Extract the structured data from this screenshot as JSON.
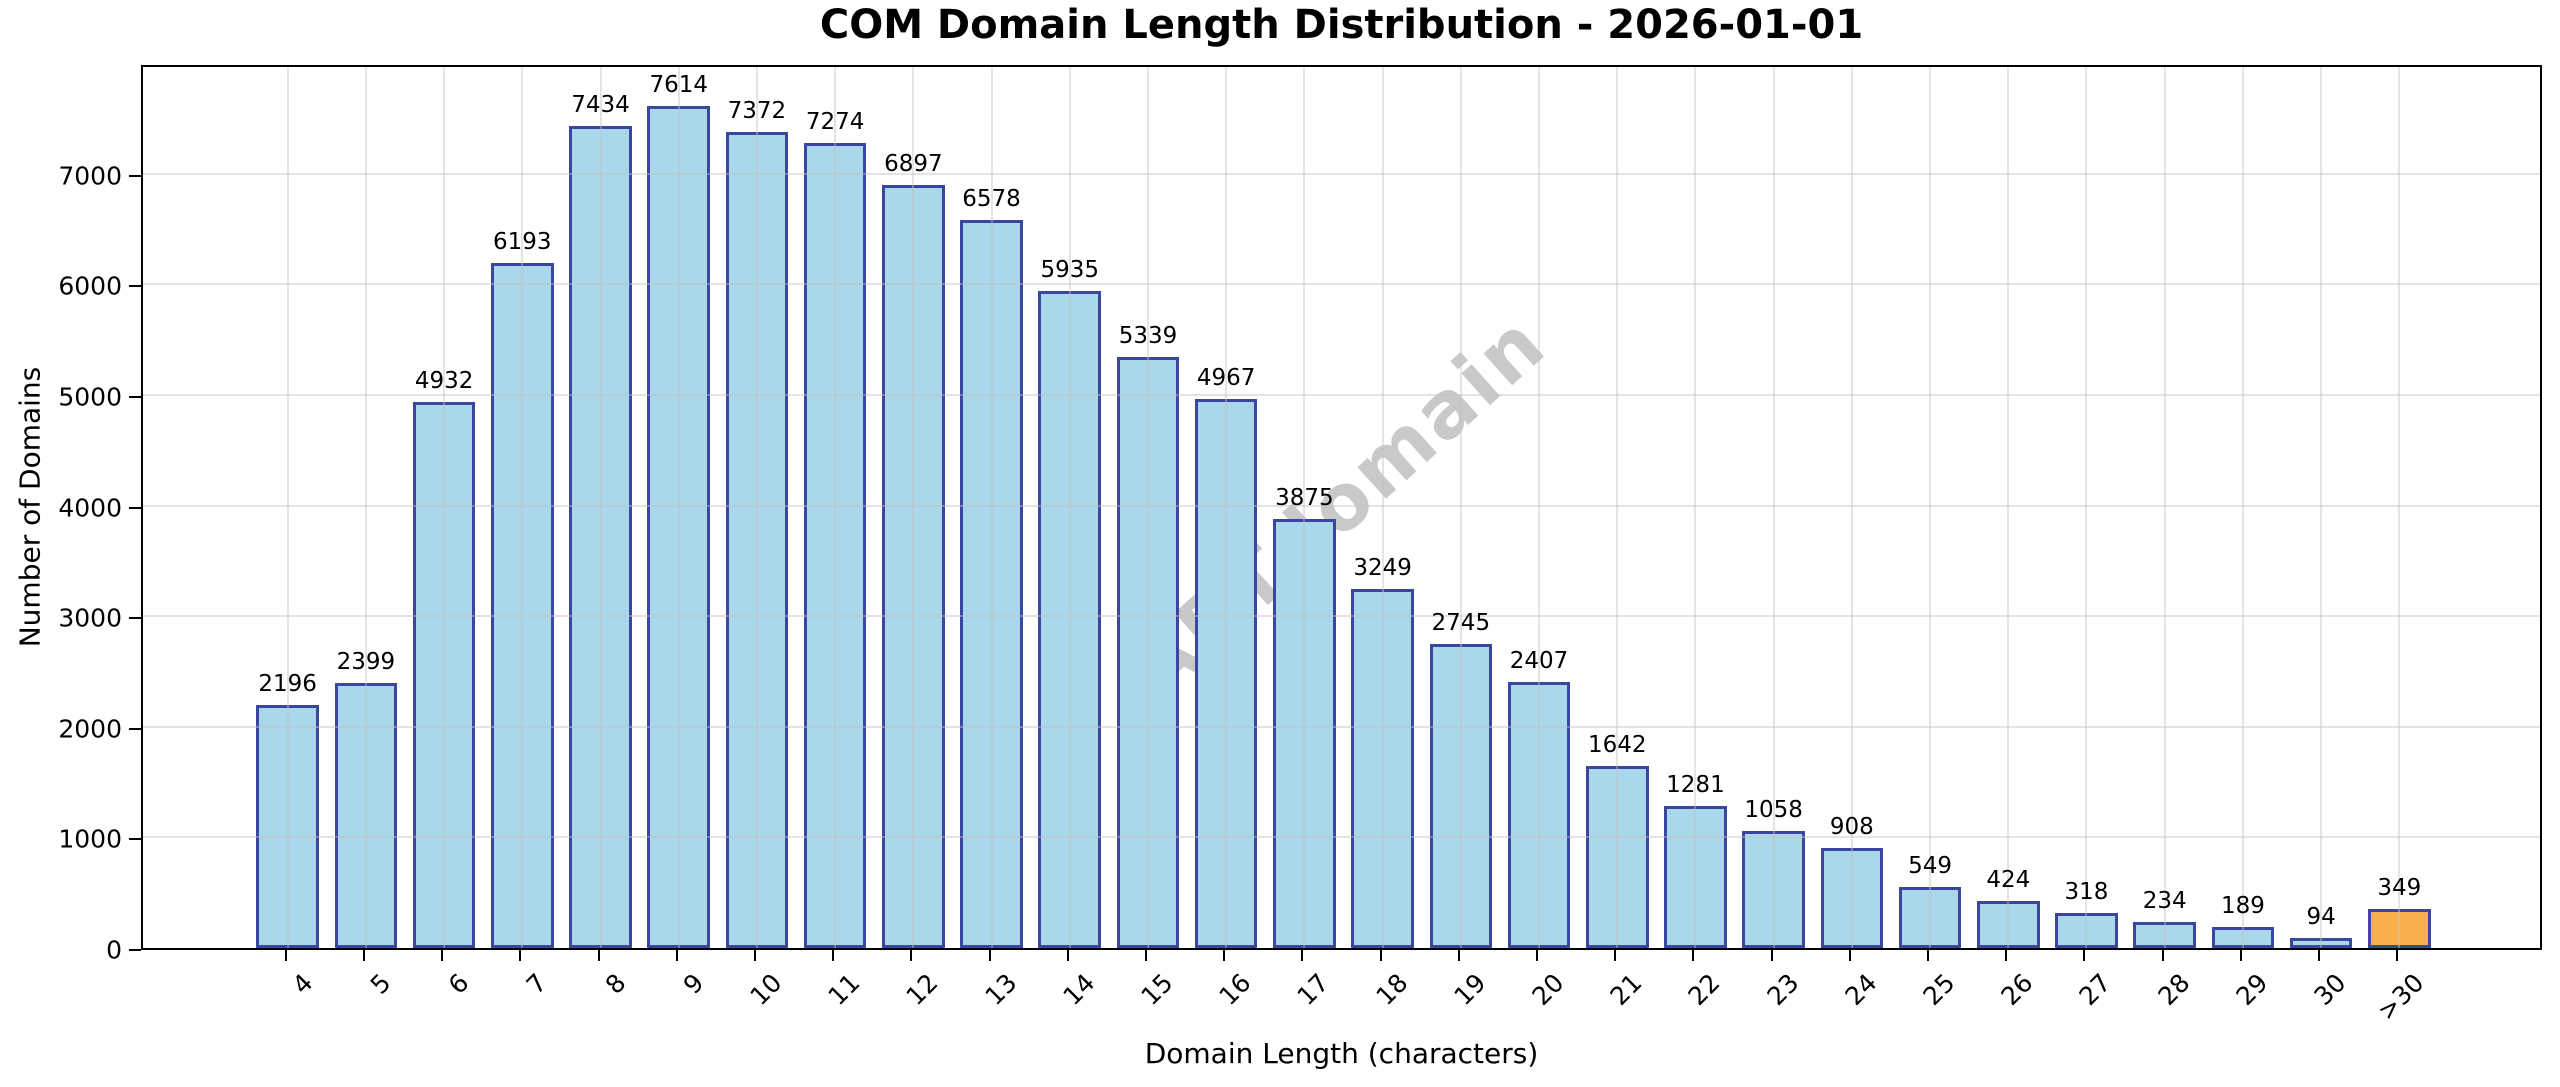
{
  "chart_data": {
    "type": "bar",
    "title": "COM Domain Length Distribution - 2026-01-01",
    "xlabel": "Domain Length (characters)",
    "ylabel": "Number of Domains",
    "categories": [
      "4",
      "5",
      "6",
      "7",
      "8",
      "9",
      "10",
      "11",
      "12",
      "13",
      "14",
      "15",
      "16",
      "17",
      "18",
      "19",
      "20",
      "21",
      "22",
      "23",
      "24",
      "25",
      "26",
      "27",
      "28",
      "29",
      "30",
      ">30"
    ],
    "values": [
      2196,
      2399,
      4932,
      6193,
      7434,
      7614,
      7372,
      7274,
      6897,
      6578,
      5935,
      5339,
      4967,
      3875,
      3249,
      2745,
      2407,
      1642,
      1281,
      1058,
      908,
      549,
      424,
      318,
      234,
      189,
      94,
      349
    ],
    "value_labels_shown": true,
    "ylim": [
      0,
      8000
    ],
    "yticks": [
      0,
      1000,
      2000,
      3000,
      4000,
      5000,
      6000,
      7000
    ],
    "grid": true,
    "xtick_rotation_deg": 45,
    "legend": null,
    "colors": {
      "bar_fill": "#A8D8EA",
      "bar_edge": "#3A46A0",
      "highlight_fill": "#F9B04C",
      "grid": "#C3C3C3",
      "text": "#000000",
      "background": "#FFFFFF"
    },
    "highlight_index": 27,
    "watermark": {
      "text": "ABTdomain",
      "color": "#8F8F8F",
      "rotation_deg": -42
    }
  }
}
